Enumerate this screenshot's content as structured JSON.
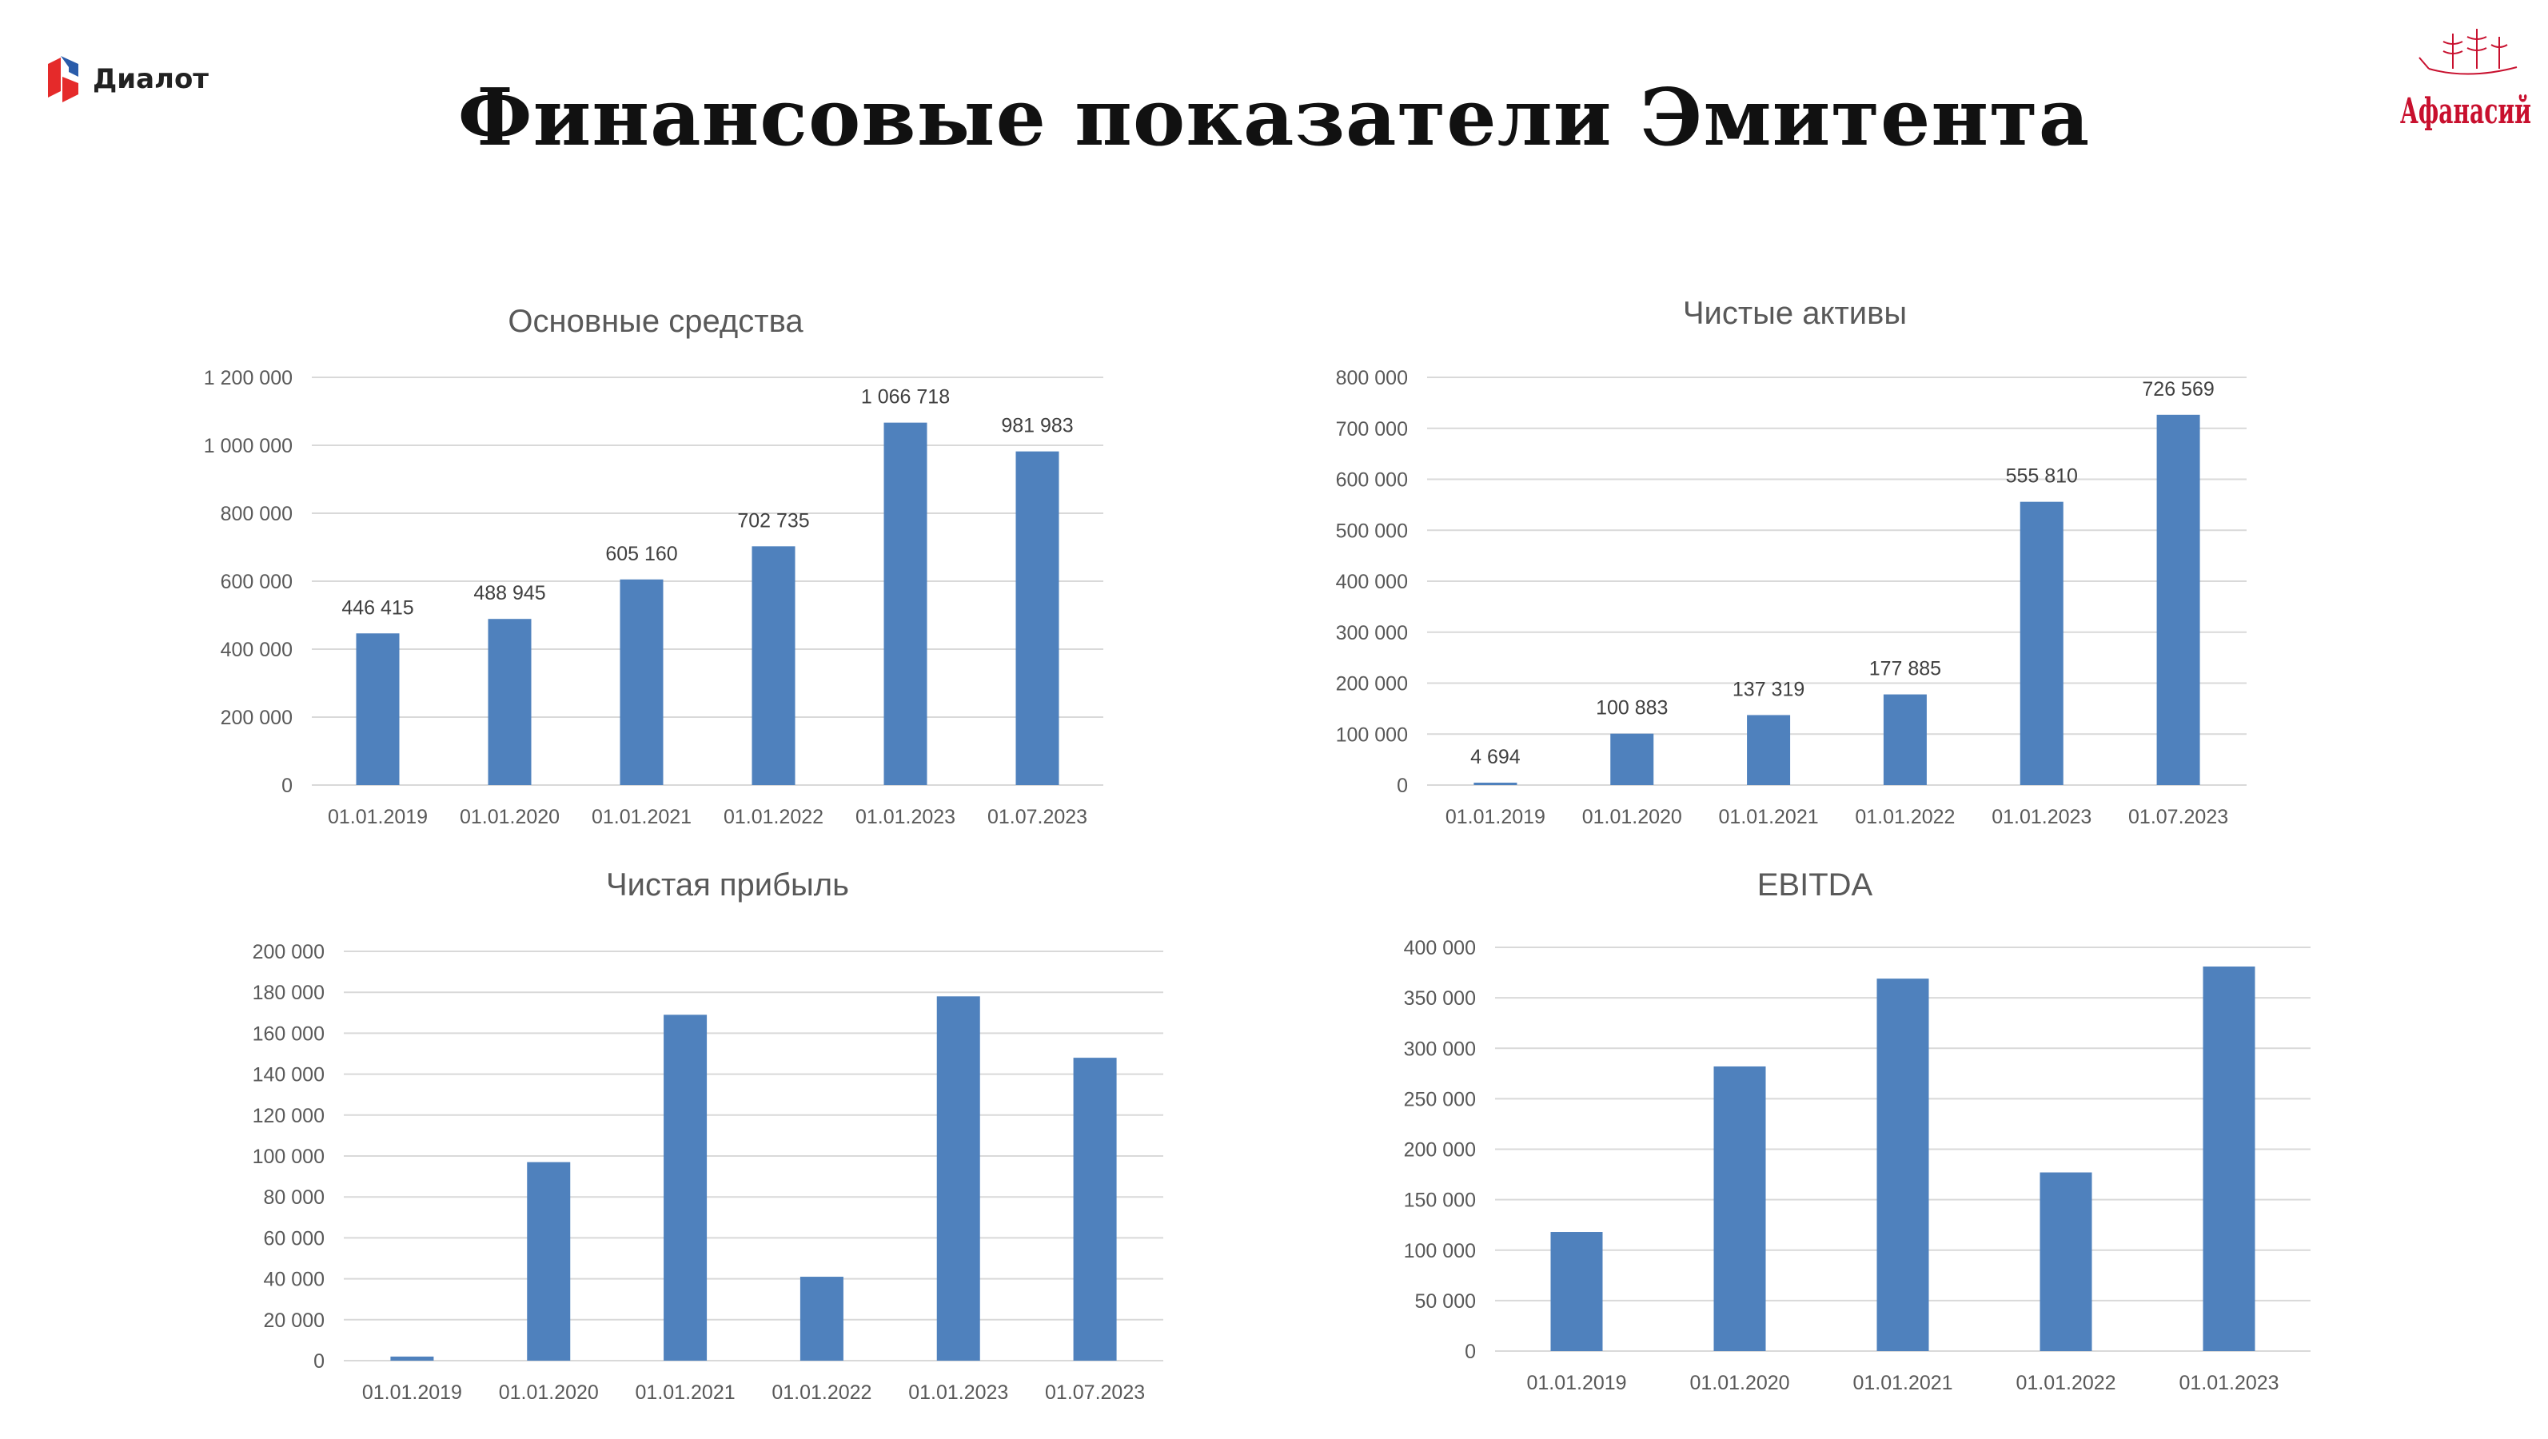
{
  "header": {
    "title": "Финансовые показатели Эмитента",
    "logo_left_text": "Диалот",
    "logo_right_text": "Афанасий"
  },
  "colors": {
    "bar": "#4f81bd",
    "grid": "#d9d9d9",
    "text": "#595959"
  },
  "chart_data": [
    {
      "type": "bar",
      "title": "Основные средства",
      "categories": [
        "01.01.2019",
        "01.01.2020",
        "01.01.2021",
        "01.01.2022",
        "01.01.2023",
        "01.07.2023"
      ],
      "values": [
        446415,
        488945,
        605160,
        702735,
        1066718,
        981983
      ],
      "data_labels": [
        "446 415",
        "488 945",
        "605 160",
        "702 735",
        "1 066 718",
        "981 983"
      ],
      "ylim": [
        0,
        1200000
      ],
      "yticks": [
        "0",
        "200 000",
        "400 000",
        "600 000",
        "800 000",
        "1 000 000",
        "1 200 000"
      ],
      "grid": true
    },
    {
      "type": "bar",
      "title": "Чистые активы",
      "categories": [
        "01.01.2019",
        "01.01.2020",
        "01.01.2021",
        "01.01.2022",
        "01.01.2023",
        "01.07.2023"
      ],
      "values": [
        4694,
        100883,
        137319,
        177885,
        555810,
        726569
      ],
      "data_labels": [
        "4 694",
        "100 883",
        "137 319",
        "177 885",
        "555 810",
        "726 569"
      ],
      "ylim": [
        0,
        800000
      ],
      "yticks": [
        "0",
        "100 000",
        "200 000",
        "300 000",
        "400 000",
        "500 000",
        "600 000",
        "700 000",
        "800 000"
      ],
      "grid": true
    },
    {
      "type": "bar",
      "title": "Чистая прибыль",
      "categories": [
        "01.01.2019",
        "01.01.2020",
        "01.01.2021",
        "01.01.2022",
        "01.01.2023",
        "01.07.2023"
      ],
      "values": [
        2000,
        97000,
        169000,
        41000,
        178000,
        148000
      ],
      "ylim": [
        0,
        200000
      ],
      "yticks": [
        "0",
        "20 000",
        "40 000",
        "60 000",
        "80 000",
        "100 000",
        "120 000",
        "140 000",
        "160 000",
        "180 000",
        "200 000"
      ],
      "grid": true
    },
    {
      "type": "bar",
      "title": "EBITDA",
      "categories": [
        "01.01.2019",
        "01.01.2020",
        "01.01.2021",
        "01.01.2022",
        "01.01.2023"
      ],
      "values": [
        118000,
        282000,
        369000,
        177000,
        381000
      ],
      "ylim": [
        0,
        400000
      ],
      "yticks": [
        "0",
        "50 000",
        "100 000",
        "150 000",
        "200 000",
        "250 000",
        "300 000",
        "350 000",
        "400 000"
      ],
      "grid": true
    }
  ]
}
